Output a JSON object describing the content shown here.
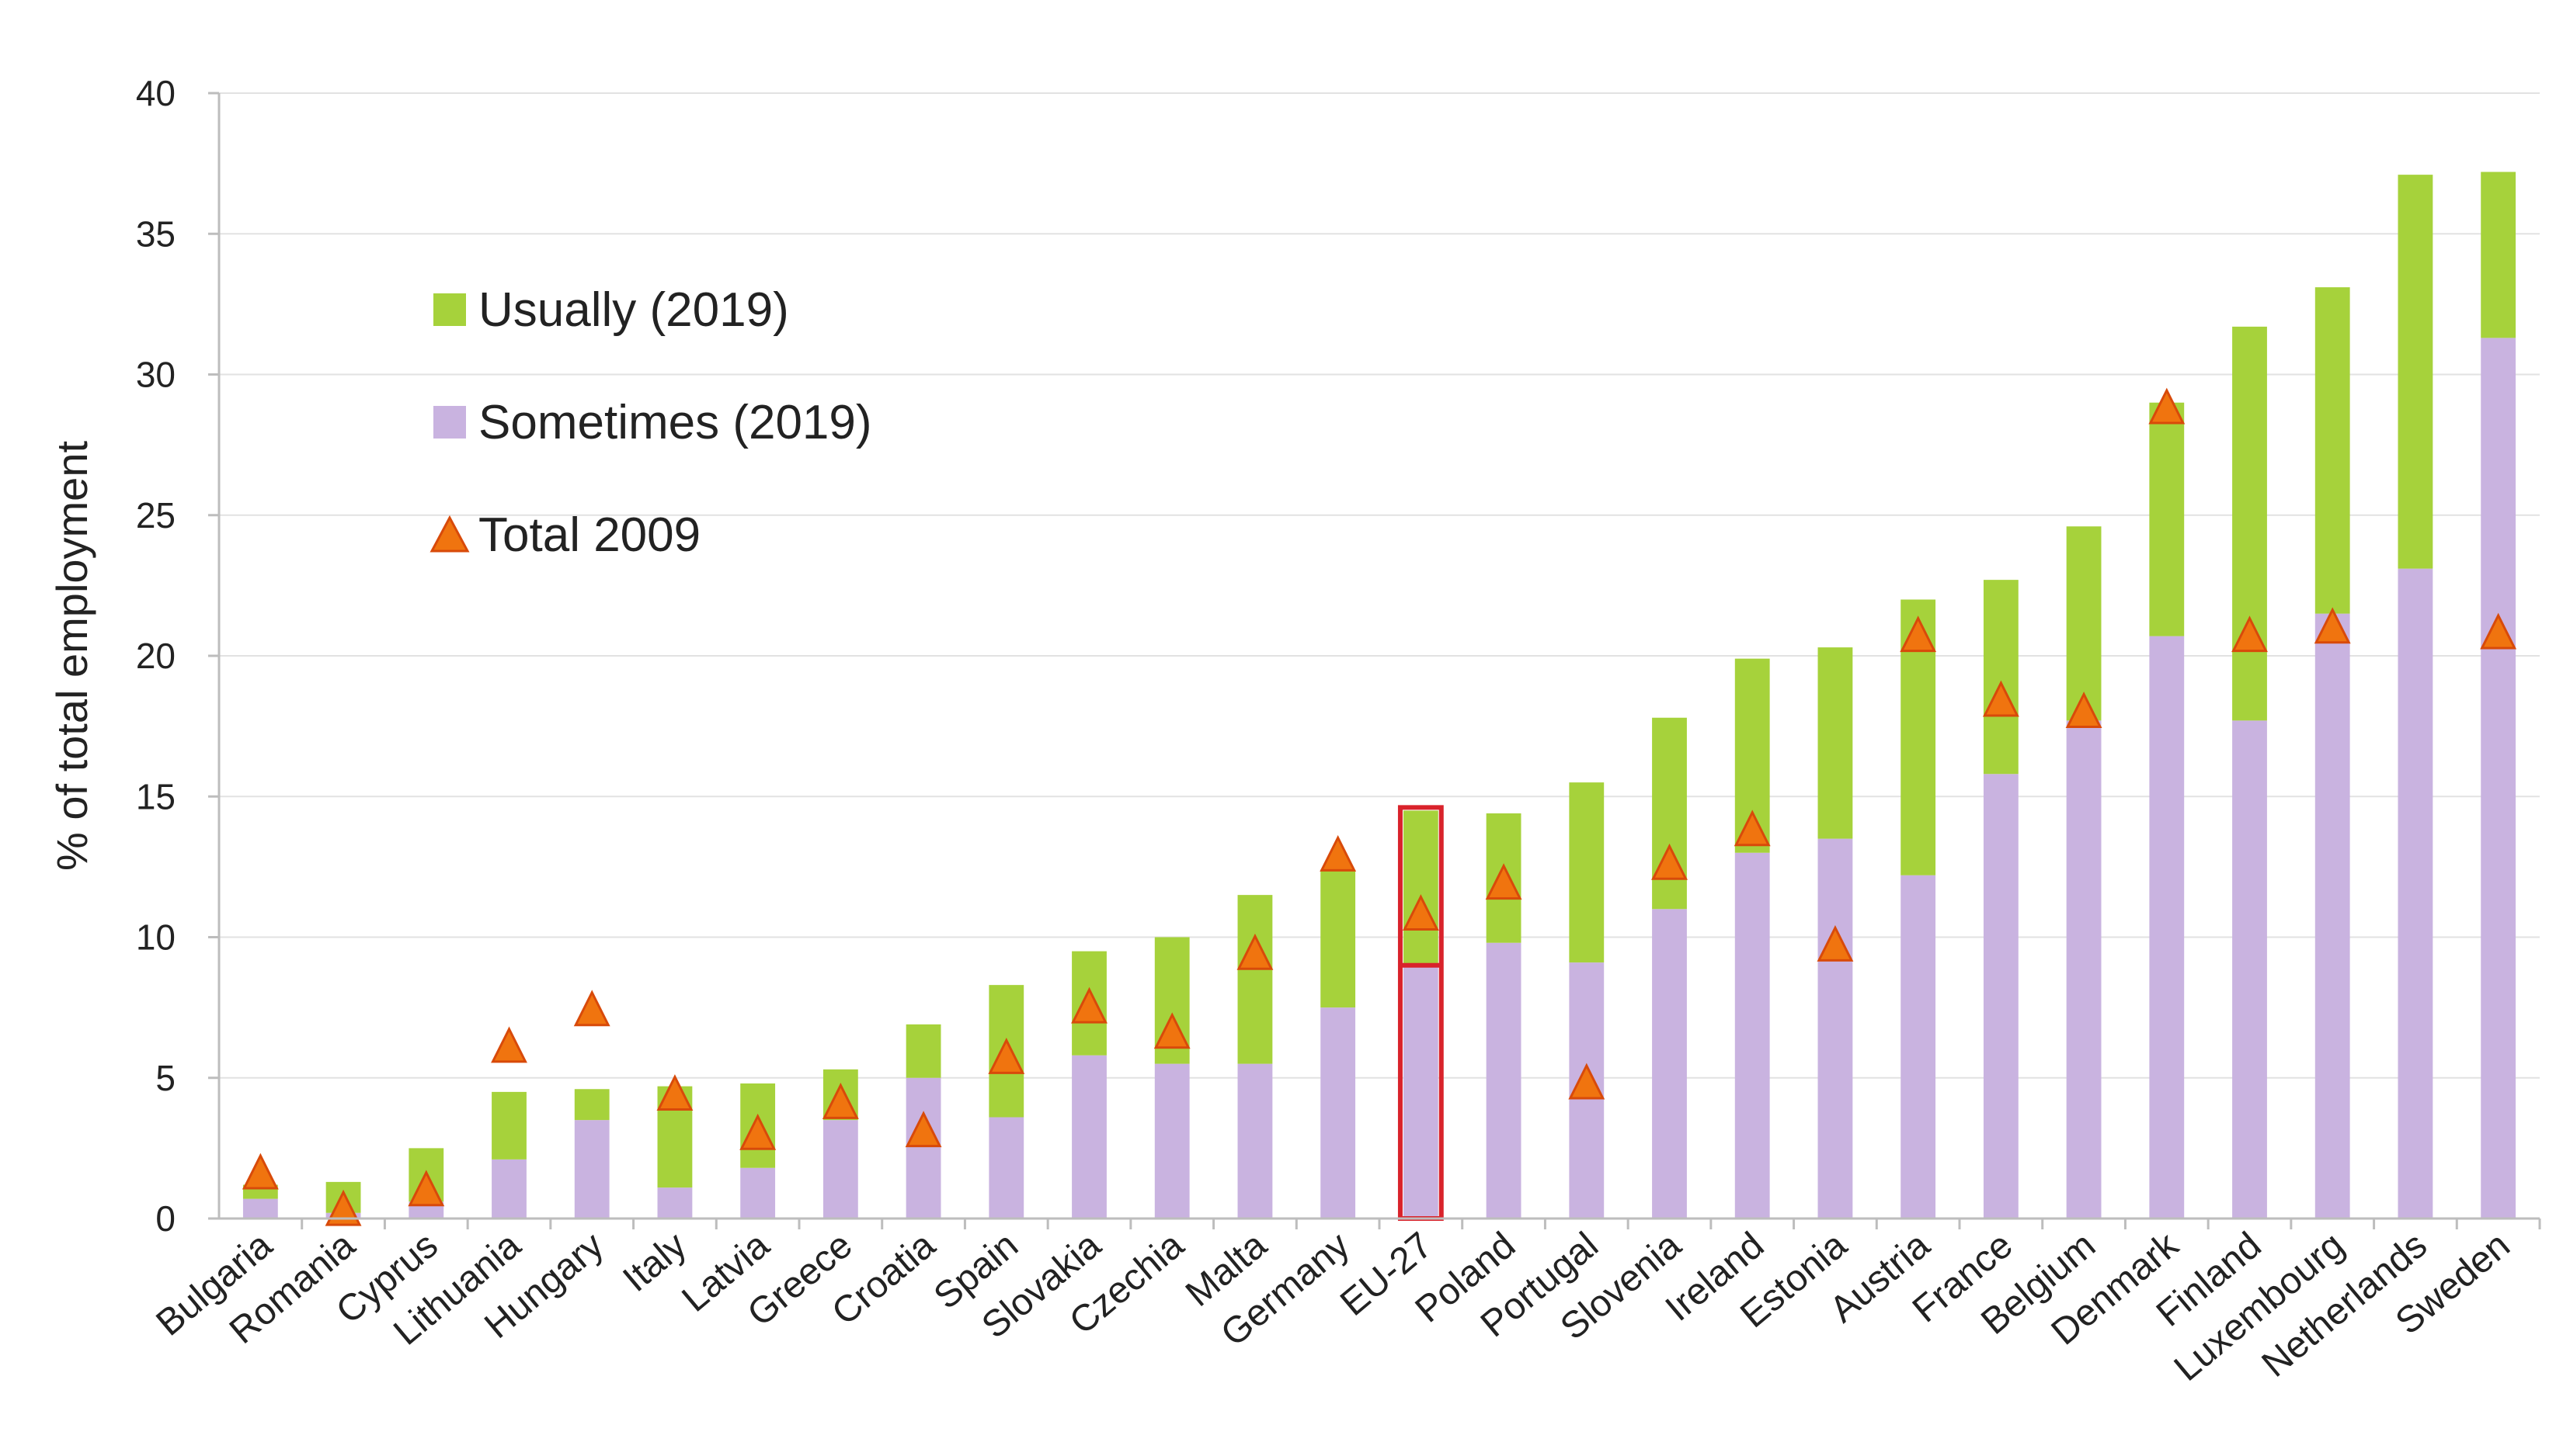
{
  "chart_data": {
    "type": "bar",
    "stacked": true,
    "title": "",
    "xlabel": "",
    "ylabel": "% of total employment",
    "ylim": [
      0,
      40
    ],
    "yticks": [
      0,
      5,
      10,
      15,
      20,
      25,
      30,
      35,
      40
    ],
    "grid": true,
    "legend_position": "top-left",
    "categories": [
      "Bulgaria",
      "Romania",
      "Cyprus",
      "Lithuania",
      "Hungary",
      "Italy",
      "Latvia",
      "Greece",
      "Croatia",
      "Spain",
      "Slovakia",
      "Czechia",
      "Malta",
      "Germany",
      "EU-27",
      "Poland",
      "Portugal",
      "Slovenia",
      "Ireland",
      "Estonia",
      "Austria",
      "France",
      "Belgium",
      "Denmark",
      "Finland",
      "Luxembourg",
      "Netherlands",
      "Sweden"
    ],
    "highlighted_category": "EU-27",
    "series": [
      {
        "name": "Sometimes (2019)",
        "kind": "bar",
        "color": "#c9b3e0",
        "values": [
          0.7,
          0.2,
          0.6,
          2.1,
          3.5,
          1.1,
          1.8,
          3.5,
          5.0,
          3.6,
          5.8,
          5.5,
          5.5,
          7.5,
          9.0,
          9.8,
          9.1,
          11.0,
          13.0,
          13.5,
          12.2,
          15.8,
          17.7,
          20.7,
          17.7,
          21.5,
          23.1,
          31.3
        ]
      },
      {
        "name": "Usually (2019)",
        "kind": "bar",
        "color": "#a6d23b",
        "values": [
          0.5,
          1.1,
          1.9,
          2.4,
          1.1,
          3.6,
          3.0,
          1.8,
          1.9,
          4.7,
          3.7,
          4.5,
          6.0,
          4.9,
          5.5,
          4.6,
          6.4,
          6.8,
          6.9,
          6.8,
          9.8,
          6.9,
          6.9,
          8.3,
          14.0,
          11.6,
          14.0,
          5.9
        ]
      },
      {
        "name": "Total 2009",
        "kind": "marker",
        "color": "#f0740f",
        "values": [
          1.6,
          0.3,
          1.0,
          6.1,
          7.4,
          4.4,
          3.0,
          4.1,
          3.1,
          5.7,
          7.5,
          6.6,
          9.4,
          12.9,
          10.8,
          11.9,
          4.8,
          12.6,
          13.8,
          9.7,
          20.7,
          18.4,
          18.0,
          28.8,
          20.7,
          21.0,
          null,
          20.8
        ]
      }
    ]
  },
  "legend": {
    "usually_label": "Usually (2019)",
    "sometimes_label": "Sometimes (2019)",
    "total_label": "Total 2009"
  }
}
